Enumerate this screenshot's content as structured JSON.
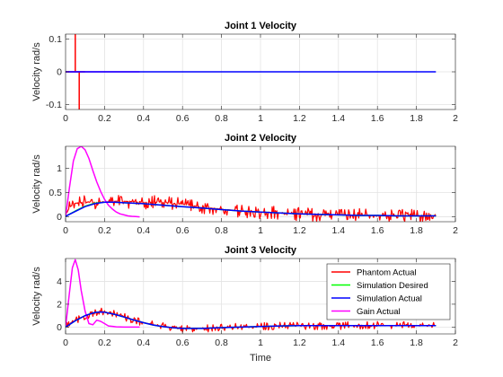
{
  "figure": {
    "background": "#ffffff",
    "colors": {
      "phantom_actual": "#ff0000",
      "simulation_desired": "#00ff00",
      "simulation_actual": "#0000ff",
      "gain_actual": "#ff00ff",
      "grid": "#e3e3e3",
      "axis": "#262626"
    }
  },
  "chart_data": [
    {
      "type": "line",
      "title": "Joint 1 Velocity",
      "xlabel": "",
      "ylabel": "Velocity rad/s",
      "xlim": [
        0,
        2
      ],
      "ylim": [
        -0.115,
        0.115
      ],
      "xticks": [
        "0",
        "0.2",
        "0.4",
        "0.6",
        "0.8",
        "1",
        "1.2",
        "1.4",
        "1.6",
        "1.8",
        "2"
      ],
      "xtick_values": [
        0,
        0.2,
        0.4,
        0.6,
        0.8,
        1,
        1.2,
        1.4,
        1.6,
        1.8,
        2
      ],
      "yticks": [
        "-0.1",
        "0",
        "0.1"
      ],
      "ytick_values": [
        -0.1,
        0,
        0.1
      ],
      "grid": true,
      "series": [
        {
          "key": "phantom_actual",
          "x": [
            0,
            0.05,
            0.05,
            0.05,
            0.07,
            0.07,
            0.07,
            0.1
          ],
          "y": [
            0,
            0,
            0.12,
            0,
            0,
            -0.12,
            0,
            0
          ]
        },
        {
          "key": "gain_actual",
          "x": [
            0,
            0.38
          ],
          "y": [
            0,
            0
          ]
        },
        {
          "key": "simulation_actual",
          "x": [
            0,
            1.9
          ],
          "y": [
            0,
            0
          ]
        }
      ]
    },
    {
      "type": "line",
      "title": "Joint 2 Velocity",
      "xlabel": "",
      "ylabel": "Velocity rad/s",
      "xlim": [
        0,
        2
      ],
      "ylim": [
        -0.1,
        1.45
      ],
      "xticks": [
        "0",
        "0.2",
        "0.4",
        "0.6",
        "0.8",
        "1",
        "1.2",
        "1.4",
        "1.6",
        "1.8",
        "2"
      ],
      "xtick_values": [
        0,
        0.2,
        0.4,
        0.6,
        0.8,
        1,
        1.2,
        1.4,
        1.6,
        1.8,
        2
      ],
      "yticks": [
        "0",
        "0.5",
        "1"
      ],
      "ytick_values": [
        0,
        0.5,
        1
      ],
      "grid": true,
      "series": [
        {
          "key": "phantom_actual",
          "x": [
            0,
            0.02,
            0.05,
            0.08,
            0.1,
            0.15,
            0.2,
            0.25,
            0.3,
            0.4,
            0.5,
            0.6,
            0.7,
            0.8,
            0.9,
            1.0,
            1.1,
            1.2,
            1.3,
            1.4,
            1.5,
            1.6,
            1.7,
            1.8,
            1.9
          ],
          "y": [
            0.02,
            0.2,
            0.28,
            0.3,
            0.3,
            0.3,
            0.3,
            0.32,
            0.32,
            0.3,
            0.3,
            0.26,
            0.2,
            0.16,
            0.12,
            0.1,
            0.08,
            0.06,
            0.04,
            0.04,
            0.03,
            0.03,
            0.02,
            0.02,
            0.02
          ],
          "noise": 0.14,
          "noise_until": 1.9
        },
        {
          "key": "simulation_desired",
          "x": [
            0,
            0.05,
            0.1,
            0.15,
            0.2,
            0.25,
            0.3,
            0.4,
            0.5,
            0.6,
            0.7,
            0.8,
            0.9,
            1.0,
            1.1,
            1.2,
            1.3,
            1.4,
            1.5,
            1.6,
            1.7,
            1.8,
            1.9
          ],
          "y": [
            0.01,
            0.12,
            0.22,
            0.28,
            0.3,
            0.3,
            0.29,
            0.27,
            0.24,
            0.21,
            0.18,
            0.15,
            0.12,
            0.1,
            0.08,
            0.06,
            0.05,
            0.04,
            0.03,
            0.03,
            0.02,
            0.02,
            0.02
          ]
        },
        {
          "key": "gain_actual",
          "x": [
            0,
            0.02,
            0.04,
            0.06,
            0.08,
            0.1,
            0.12,
            0.14,
            0.16,
            0.18,
            0.2,
            0.22,
            0.24,
            0.26,
            0.28,
            0.3,
            0.32,
            0.34,
            0.36,
            0.38
          ],
          "y": [
            0,
            0.6,
            1.15,
            1.4,
            1.45,
            1.38,
            1.2,
            0.95,
            0.72,
            0.52,
            0.36,
            0.24,
            0.16,
            0.1,
            0.06,
            0.04,
            0.02,
            0.01,
            0.005,
            0
          ]
        },
        {
          "key": "simulation_actual",
          "x": [
            0,
            0.05,
            0.1,
            0.15,
            0.2,
            0.25,
            0.3,
            0.4,
            0.5,
            0.6,
            0.7,
            0.8,
            0.9,
            1.0,
            1.1,
            1.2,
            1.3,
            1.4,
            1.5,
            1.6,
            1.7,
            1.8,
            1.9
          ],
          "y": [
            0.01,
            0.11,
            0.21,
            0.27,
            0.3,
            0.3,
            0.29,
            0.27,
            0.24,
            0.21,
            0.18,
            0.15,
            0.12,
            0.1,
            0.08,
            0.06,
            0.05,
            0.04,
            0.03,
            0.03,
            0.02,
            0.02,
            0.02
          ]
        }
      ]
    },
    {
      "type": "line",
      "title": "Joint 3 Velocity",
      "xlabel": "Time",
      "ylabel": "Velocity rad/s",
      "xlim": [
        0,
        2
      ],
      "ylim": [
        -0.6,
        6
      ],
      "xticks": [
        "0",
        "0.2",
        "0.4",
        "0.6",
        "0.8",
        "1",
        "1.2",
        "1.4",
        "1.6",
        "1.8",
        "2"
      ],
      "xtick_values": [
        0,
        0.2,
        0.4,
        0.6,
        0.8,
        1,
        1.2,
        1.4,
        1.6,
        1.8,
        2
      ],
      "yticks": [
        "0",
        "2",
        "4"
      ],
      "ytick_values": [
        0,
        2,
        4
      ],
      "grid": true,
      "legend": {
        "placement": "top-right",
        "entries": [
          {
            "key": "phantom_actual",
            "label": "Phantom Actual"
          },
          {
            "key": "simulation_desired",
            "label": "Simulation Desired"
          },
          {
            "key": "simulation_actual",
            "label": "Simulation Actual"
          },
          {
            "key": "gain_actual",
            "label": "Gain Actual"
          }
        ]
      },
      "series": [
        {
          "key": "phantom_actual",
          "x": [
            0,
            0.05,
            0.1,
            0.15,
            0.18,
            0.2,
            0.25,
            0.3,
            0.35,
            0.4,
            0.45,
            0.5,
            0.55,
            0.6,
            0.7,
            0.8,
            0.9,
            1.0,
            1.1,
            1.2,
            1.3,
            1.4,
            1.5,
            1.6,
            1.7,
            1.8,
            1.9
          ],
          "y": [
            0,
            0.6,
            1.0,
            1.3,
            1.35,
            1.3,
            1.15,
            0.9,
            0.65,
            0.4,
            0.2,
            0.05,
            -0.05,
            -0.12,
            -0.12,
            -0.05,
            0,
            0.05,
            0.1,
            0.12,
            0.12,
            0.12,
            0.12,
            0.12,
            0.12,
            0.12,
            0.12
          ],
          "noise": 0.35,
          "noise_until": 1.9
        },
        {
          "key": "simulation_desired",
          "x": [
            0,
            0.05,
            0.1,
            0.15,
            0.18,
            0.2,
            0.25,
            0.3,
            0.35,
            0.4,
            0.45,
            0.5,
            0.55,
            0.6,
            0.7,
            0.8,
            0.9,
            1.0,
            1.1,
            1.2,
            1.3,
            1.4,
            1.5,
            1.6,
            1.7,
            1.8,
            1.9
          ],
          "y": [
            0,
            0.55,
            1.0,
            1.28,
            1.32,
            1.3,
            1.12,
            0.88,
            0.62,
            0.38,
            0.18,
            0.04,
            -0.06,
            -0.12,
            -0.12,
            -0.05,
            0,
            0.05,
            0.1,
            0.12,
            0.12,
            0.12,
            0.12,
            0.12,
            0.12,
            0.12,
            0.12
          ]
        },
        {
          "key": "gain_actual",
          "x": [
            0,
            0.02,
            0.035,
            0.05,
            0.065,
            0.08,
            0.1,
            0.12,
            0.14,
            0.16,
            0.18,
            0.2,
            0.22,
            0.26,
            0.3,
            0.34,
            0.38
          ],
          "y": [
            0,
            3.0,
            5.2,
            5.9,
            5.0,
            3.2,
            1.4,
            0.3,
            0.2,
            0.6,
            0.5,
            0.3,
            0.1,
            0.02,
            0,
            0,
            0
          ]
        },
        {
          "key": "simulation_actual",
          "x": [
            0,
            0.05,
            0.1,
            0.15,
            0.18,
            0.2,
            0.25,
            0.3,
            0.35,
            0.4,
            0.45,
            0.5,
            0.55,
            0.6,
            0.7,
            0.8,
            0.9,
            1.0,
            1.1,
            1.2,
            1.3,
            1.4,
            1.5,
            1.6,
            1.7,
            1.8,
            1.9
          ],
          "y": [
            0,
            0.55,
            1.0,
            1.28,
            1.32,
            1.3,
            1.12,
            0.88,
            0.62,
            0.38,
            0.18,
            0.04,
            -0.06,
            -0.12,
            -0.12,
            -0.05,
            0,
            0.05,
            0.1,
            0.12,
            0.12,
            0.12,
            0.12,
            0.12,
            0.12,
            0.12,
            0.12
          ]
        }
      ]
    }
  ]
}
